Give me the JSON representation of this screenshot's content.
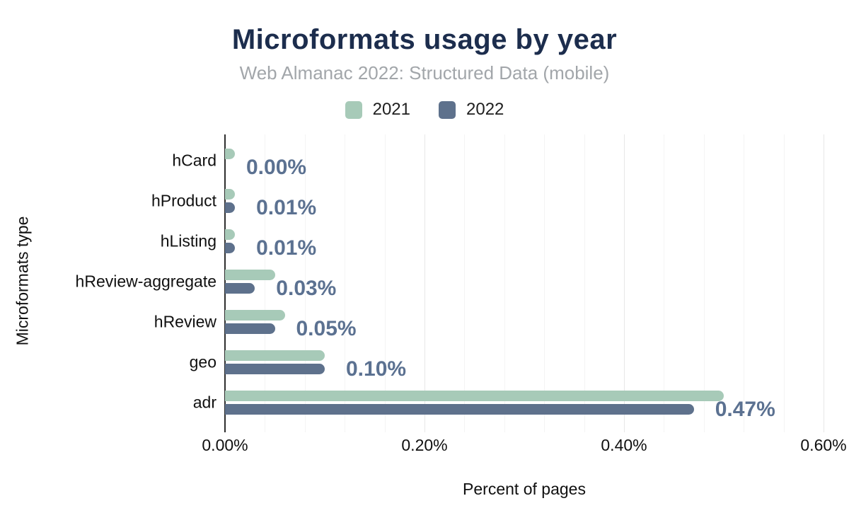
{
  "header": {
    "title": "Microformats usage by year",
    "subtitle": "Web Almanac 2022: Structured Data (mobile)"
  },
  "colors": {
    "title": "#1c2d4d",
    "subtitle": "#a2a6aa",
    "series_2021": "#a7cab8",
    "series_2022": "#5e718c",
    "value_label": "#5b7191",
    "axis_line": "#2e2e2e",
    "major_gridline": "#e7e7e7",
    "minor_gridline": "#f4f4f4",
    "background": "#ffffff"
  },
  "chart_data": {
    "type": "bar",
    "orientation": "horizontal",
    "title": "Microformats usage by year",
    "subtitle": "Web Almanac 2022: Structured Data (mobile)",
    "xlabel": "Percent of pages",
    "ylabel": "Microformats type",
    "categories": [
      "hCard",
      "hProduct",
      "hListing",
      "hReview-aggregate",
      "hReview",
      "geo",
      "adr"
    ],
    "series": [
      {
        "name": "2021",
        "color": "#a7cab8",
        "values": [
          0.01,
          0.01,
          0.01,
          0.05,
          0.06,
          0.1,
          0.5
        ]
      },
      {
        "name": "2022",
        "color": "#5e718c",
        "values": [
          0.0,
          0.01,
          0.01,
          0.03,
          0.05,
          0.1,
          0.47
        ]
      }
    ],
    "data_labels": [
      "0.00%",
      "0.01%",
      "0.01%",
      "0.03%",
      "0.05%",
      "0.10%",
      "0.47%"
    ],
    "data_label_series": "2022",
    "x_ticks": [
      {
        "label": "0.00%",
        "value": 0.0
      },
      {
        "label": "0.20%",
        "value": 0.2
      },
      {
        "label": "0.40%",
        "value": 0.4
      },
      {
        "label": "0.60%",
        "value": 0.6
      }
    ],
    "xlim": [
      0,
      0.6
    ],
    "minor_grid_step": 0.04,
    "grid": true,
    "legend_position": "top"
  }
}
